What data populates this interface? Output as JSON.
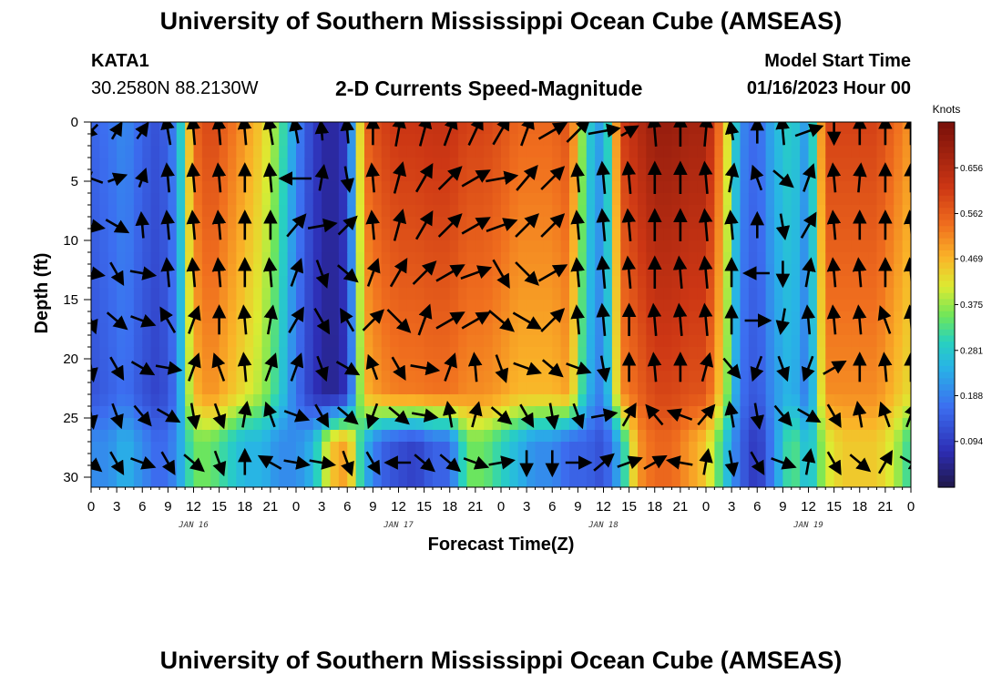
{
  "page": {
    "title": "University of Southern Mississippi Ocean Cube (AMSEAS)",
    "footer_title": "University of Southern Mississippi Ocean Cube (AMSEAS)",
    "station_id": "KATA1",
    "coordinates": "30.2580N  88.2130W",
    "model_start_label": "Model Start Time",
    "model_start_value": "01/16/2023 Hour 00"
  },
  "chart_data": {
    "type": "heatmap",
    "title": "2-D Currents Speed-Magnitude",
    "xlabel": "Forecast Time(Z)",
    "ylabel": "Depth (ft)",
    "x_tick_labels": [
      "0",
      "3",
      "6",
      "9",
      "12",
      "15",
      "18",
      "21",
      "0",
      "3",
      "6",
      "9",
      "12",
      "15",
      "18",
      "21",
      "0",
      "3",
      "6",
      "9",
      "12",
      "15",
      "18",
      "21",
      "0",
      "3",
      "6",
      "9",
      "12",
      "15",
      "18",
      "21",
      "0"
    ],
    "date_labels": [
      {
        "label": "JAN 16",
        "hour": 12
      },
      {
        "label": "JAN 17",
        "hour": 36
      },
      {
        "label": "JAN 18",
        "hour": 60
      },
      {
        "label": "JAN 19",
        "hour": 84
      }
    ],
    "xlim_hours": [
      0,
      96
    ],
    "y_tick_labels": [
      "0",
      "5",
      "10",
      "15",
      "20",
      "25",
      "30"
    ],
    "ylim_ft": [
      0,
      31
    ],
    "colorbar": {
      "unit": "Knots",
      "range": [
        0.0,
        0.75
      ],
      "tick_values": [
        0.094,
        0.188,
        0.281,
        0.375,
        0.469,
        0.562,
        0.656
      ],
      "tick_labels": [
        "0.094",
        "0.188",
        "0.281",
        "0.375",
        "0.469",
        "0.562",
        "0.656"
      ]
    },
    "speed_profile_hours": [
      0,
      2,
      4,
      6,
      8,
      10,
      12,
      14,
      16,
      18,
      20,
      22,
      24,
      26,
      28,
      30,
      32,
      34,
      36,
      38,
      40,
      42,
      44,
      46,
      48,
      50,
      52,
      54,
      56,
      58,
      60,
      62,
      64,
      66,
      68,
      70,
      72,
      74,
      76,
      78,
      80,
      82,
      84,
      86,
      88,
      90,
      92,
      94,
      96
    ],
    "speed_surface_knots": [
      0.15,
      0.17,
      0.2,
      0.15,
      0.12,
      0.2,
      0.55,
      0.6,
      0.55,
      0.5,
      0.45,
      0.35,
      0.2,
      0.1,
      0.05,
      0.1,
      0.55,
      0.6,
      0.62,
      0.62,
      0.63,
      0.63,
      0.6,
      0.6,
      0.58,
      0.55,
      0.55,
      0.55,
      0.58,
      0.3,
      0.2,
      0.6,
      0.65,
      0.7,
      0.7,
      0.68,
      0.68,
      0.5,
      0.2,
      0.15,
      0.25,
      0.3,
      0.2,
      0.6,
      0.6,
      0.6,
      0.6,
      0.55,
      0.5
    ],
    "speed_bottom_knots": [
      0.2,
      0.2,
      0.25,
      0.2,
      0.15,
      0.2,
      0.35,
      0.35,
      0.3,
      0.25,
      0.25,
      0.2,
      0.2,
      0.25,
      0.45,
      0.5,
      0.25,
      0.15,
      0.12,
      0.1,
      0.15,
      0.15,
      0.35,
      0.35,
      0.3,
      0.25,
      0.2,
      0.2,
      0.15,
      0.15,
      0.12,
      0.25,
      0.5,
      0.55,
      0.55,
      0.5,
      0.45,
      0.3,
      0.15,
      0.08,
      0.2,
      0.35,
      0.25,
      0.4,
      0.45,
      0.45,
      0.45,
      0.4,
      0.3
    ],
    "bottom_layer_top_ft": 23,
    "vector_hours": [
      0,
      3,
      6,
      9,
      12,
      15,
      18,
      21,
      24,
      27,
      30,
      33,
      36,
      39,
      42,
      45,
      48,
      51,
      54,
      57,
      60,
      63,
      66,
      69,
      72,
      75,
      78,
      81,
      84,
      87,
      90,
      93,
      96
    ],
    "vector_depths_ft": [
      0,
      4,
      8,
      12,
      16,
      20,
      24,
      28
    ],
    "vector_direction_deg": [
      [
        225,
        30,
        35,
        350,
        355,
        355,
        355,
        350,
        350,
        355,
        355,
        0,
        10,
        15,
        20,
        25,
        30,
        20,
        60,
        45,
        80,
        60,
        355,
        0,
        5,
        350,
        0,
        355,
        70,
        180,
        0,
        0,
        0
      ],
      [
        290,
        70,
        20,
        355,
        355,
        355,
        0,
        355,
        270,
        10,
        170,
        355,
        15,
        30,
        45,
        60,
        80,
        40,
        45,
        355,
        355,
        355,
        0,
        0,
        355,
        10,
        340,
        130,
        20,
        355,
        5,
        0,
        0
      ],
      [
        100,
        120,
        355,
        355,
        355,
        355,
        0,
        0,
        40,
        80,
        45,
        355,
        15,
        30,
        45,
        60,
        70,
        45,
        45,
        355,
        355,
        355,
        0,
        0,
        355,
        355,
        0,
        170,
        30,
        355,
        0,
        0,
        355
      ],
      [
        100,
        150,
        100,
        355,
        355,
        355,
        0,
        355,
        20,
        160,
        130,
        20,
        30,
        45,
        60,
        70,
        150,
        135,
        60,
        355,
        355,
        355,
        0,
        355,
        355,
        0,
        270,
        180,
        10,
        355,
        355,
        0,
        355
      ],
      [
        160,
        130,
        110,
        330,
        20,
        0,
        355,
        10,
        30,
        150,
        330,
        45,
        135,
        20,
        60,
        60,
        130,
        120,
        45,
        355,
        355,
        0,
        355,
        355,
        355,
        0,
        90,
        190,
        355,
        355,
        355,
        340,
        355
      ],
      [
        170,
        150,
        120,
        100,
        20,
        340,
        355,
        20,
        20,
        160,
        120,
        340,
        150,
        100,
        20,
        355,
        160,
        110,
        130,
        110,
        170,
        0,
        355,
        0,
        15,
        140,
        200,
        160,
        200,
        60,
        0,
        355,
        0
      ],
      [
        170,
        160,
        140,
        120,
        170,
        160,
        10,
        340,
        110,
        150,
        130,
        200,
        130,
        100,
        350,
        15,
        130,
        150,
        170,
        160,
        80,
        30,
        320,
        290,
        40,
        350,
        170,
        140,
        120,
        150,
        350,
        340,
        20
      ],
      [
        130,
        150,
        110,
        150,
        130,
        160,
        0,
        300,
        100,
        100,
        160,
        150,
        270,
        130,
        130,
        110,
        80,
        180,
        180,
        90,
        50,
        70,
        60,
        280,
        10,
        170,
        150,
        110,
        10,
        150,
        130,
        30,
        120
      ]
    ],
    "vector_strength": [
      [
        0.6,
        0.6,
        0.6,
        0.9,
        0.9,
        0.9,
        0.9,
        0.9,
        0.8,
        0.6,
        0.8,
        0.9,
        1,
        1,
        1,
        1,
        1,
        1,
        1,
        1,
        1,
        0.6,
        1,
        1,
        1,
        0.6,
        0.8,
        0.9,
        0.9,
        0.8,
        0.9,
        0.9,
        0.9
      ],
      [
        0.8,
        0.6,
        0.6,
        0.9,
        0.9,
        0.9,
        0.9,
        0.9,
        1,
        0.8,
        0.8,
        0.9,
        1,
        1,
        1,
        1,
        1,
        1,
        1,
        0.9,
        1,
        1,
        1,
        1,
        1,
        0.9,
        0.8,
        0.8,
        0.9,
        0.9,
        0.9,
        0.9,
        0.9
      ],
      [
        0.8,
        0.8,
        0.8,
        0.9,
        0.9,
        0.9,
        0.9,
        0.9,
        0.9,
        0.9,
        0.8,
        0.9,
        1,
        1,
        1,
        1,
        1,
        1,
        1,
        0.9,
        1,
        1,
        1,
        1,
        1,
        0.9,
        0.8,
        0.8,
        0.9,
        0.9,
        0.9,
        0.9,
        0.9
      ],
      [
        0.8,
        0.8,
        0.8,
        0.9,
        0.9,
        0.9,
        0.9,
        0.9,
        0.9,
        0.9,
        0.8,
        0.9,
        1,
        1,
        1,
        1,
        1,
        1,
        1,
        0.9,
        1,
        1,
        1,
        1,
        1,
        0.9,
        0.8,
        0.8,
        0.9,
        0.9,
        0.9,
        0.9,
        0.9
      ],
      [
        0.8,
        0.8,
        0.8,
        0.9,
        0.9,
        0.9,
        0.9,
        0.9,
        0.9,
        0.9,
        0.8,
        0.9,
        1,
        1,
        1,
        1,
        1,
        1,
        1,
        0.9,
        1,
        1,
        1,
        1,
        1,
        0.9,
        0.8,
        0.8,
        0.9,
        0.9,
        0.9,
        0.9,
        0.9
      ],
      [
        0.8,
        0.8,
        0.8,
        0.8,
        0.9,
        0.9,
        0.9,
        0.9,
        0.9,
        0.8,
        0.8,
        0.8,
        0.8,
        0.9,
        0.9,
        0.9,
        0.9,
        0.9,
        0.8,
        0.8,
        0.8,
        0.9,
        0.9,
        0.9,
        0.9,
        0.8,
        0.8,
        0.8,
        0.8,
        0.8,
        0.9,
        0.9,
        0.9
      ],
      [
        0.8,
        0.8,
        0.8,
        0.8,
        0.8,
        0.8,
        0.8,
        0.8,
        0.8,
        0.8,
        0.8,
        0.8,
        0.8,
        0.8,
        0.8,
        0.8,
        0.8,
        0.8,
        0.8,
        0.8,
        0.8,
        0.8,
        0.8,
        0.8,
        0.8,
        0.8,
        0.8,
        0.8,
        0.8,
        0.8,
        0.8,
        0.8,
        0.8
      ],
      [
        0.8,
        0.8,
        0.8,
        0.8,
        0.8,
        0.8,
        0.8,
        0.8,
        0.8,
        0.8,
        0.8,
        0.8,
        0.8,
        0.8,
        0.8,
        0.8,
        0.8,
        0.8,
        0.8,
        0.8,
        0.8,
        0.8,
        0.8,
        0.8,
        0.8,
        0.8,
        0.8,
        0.8,
        0.8,
        0.8,
        0.8,
        0.8,
        0.8
      ]
    ]
  }
}
